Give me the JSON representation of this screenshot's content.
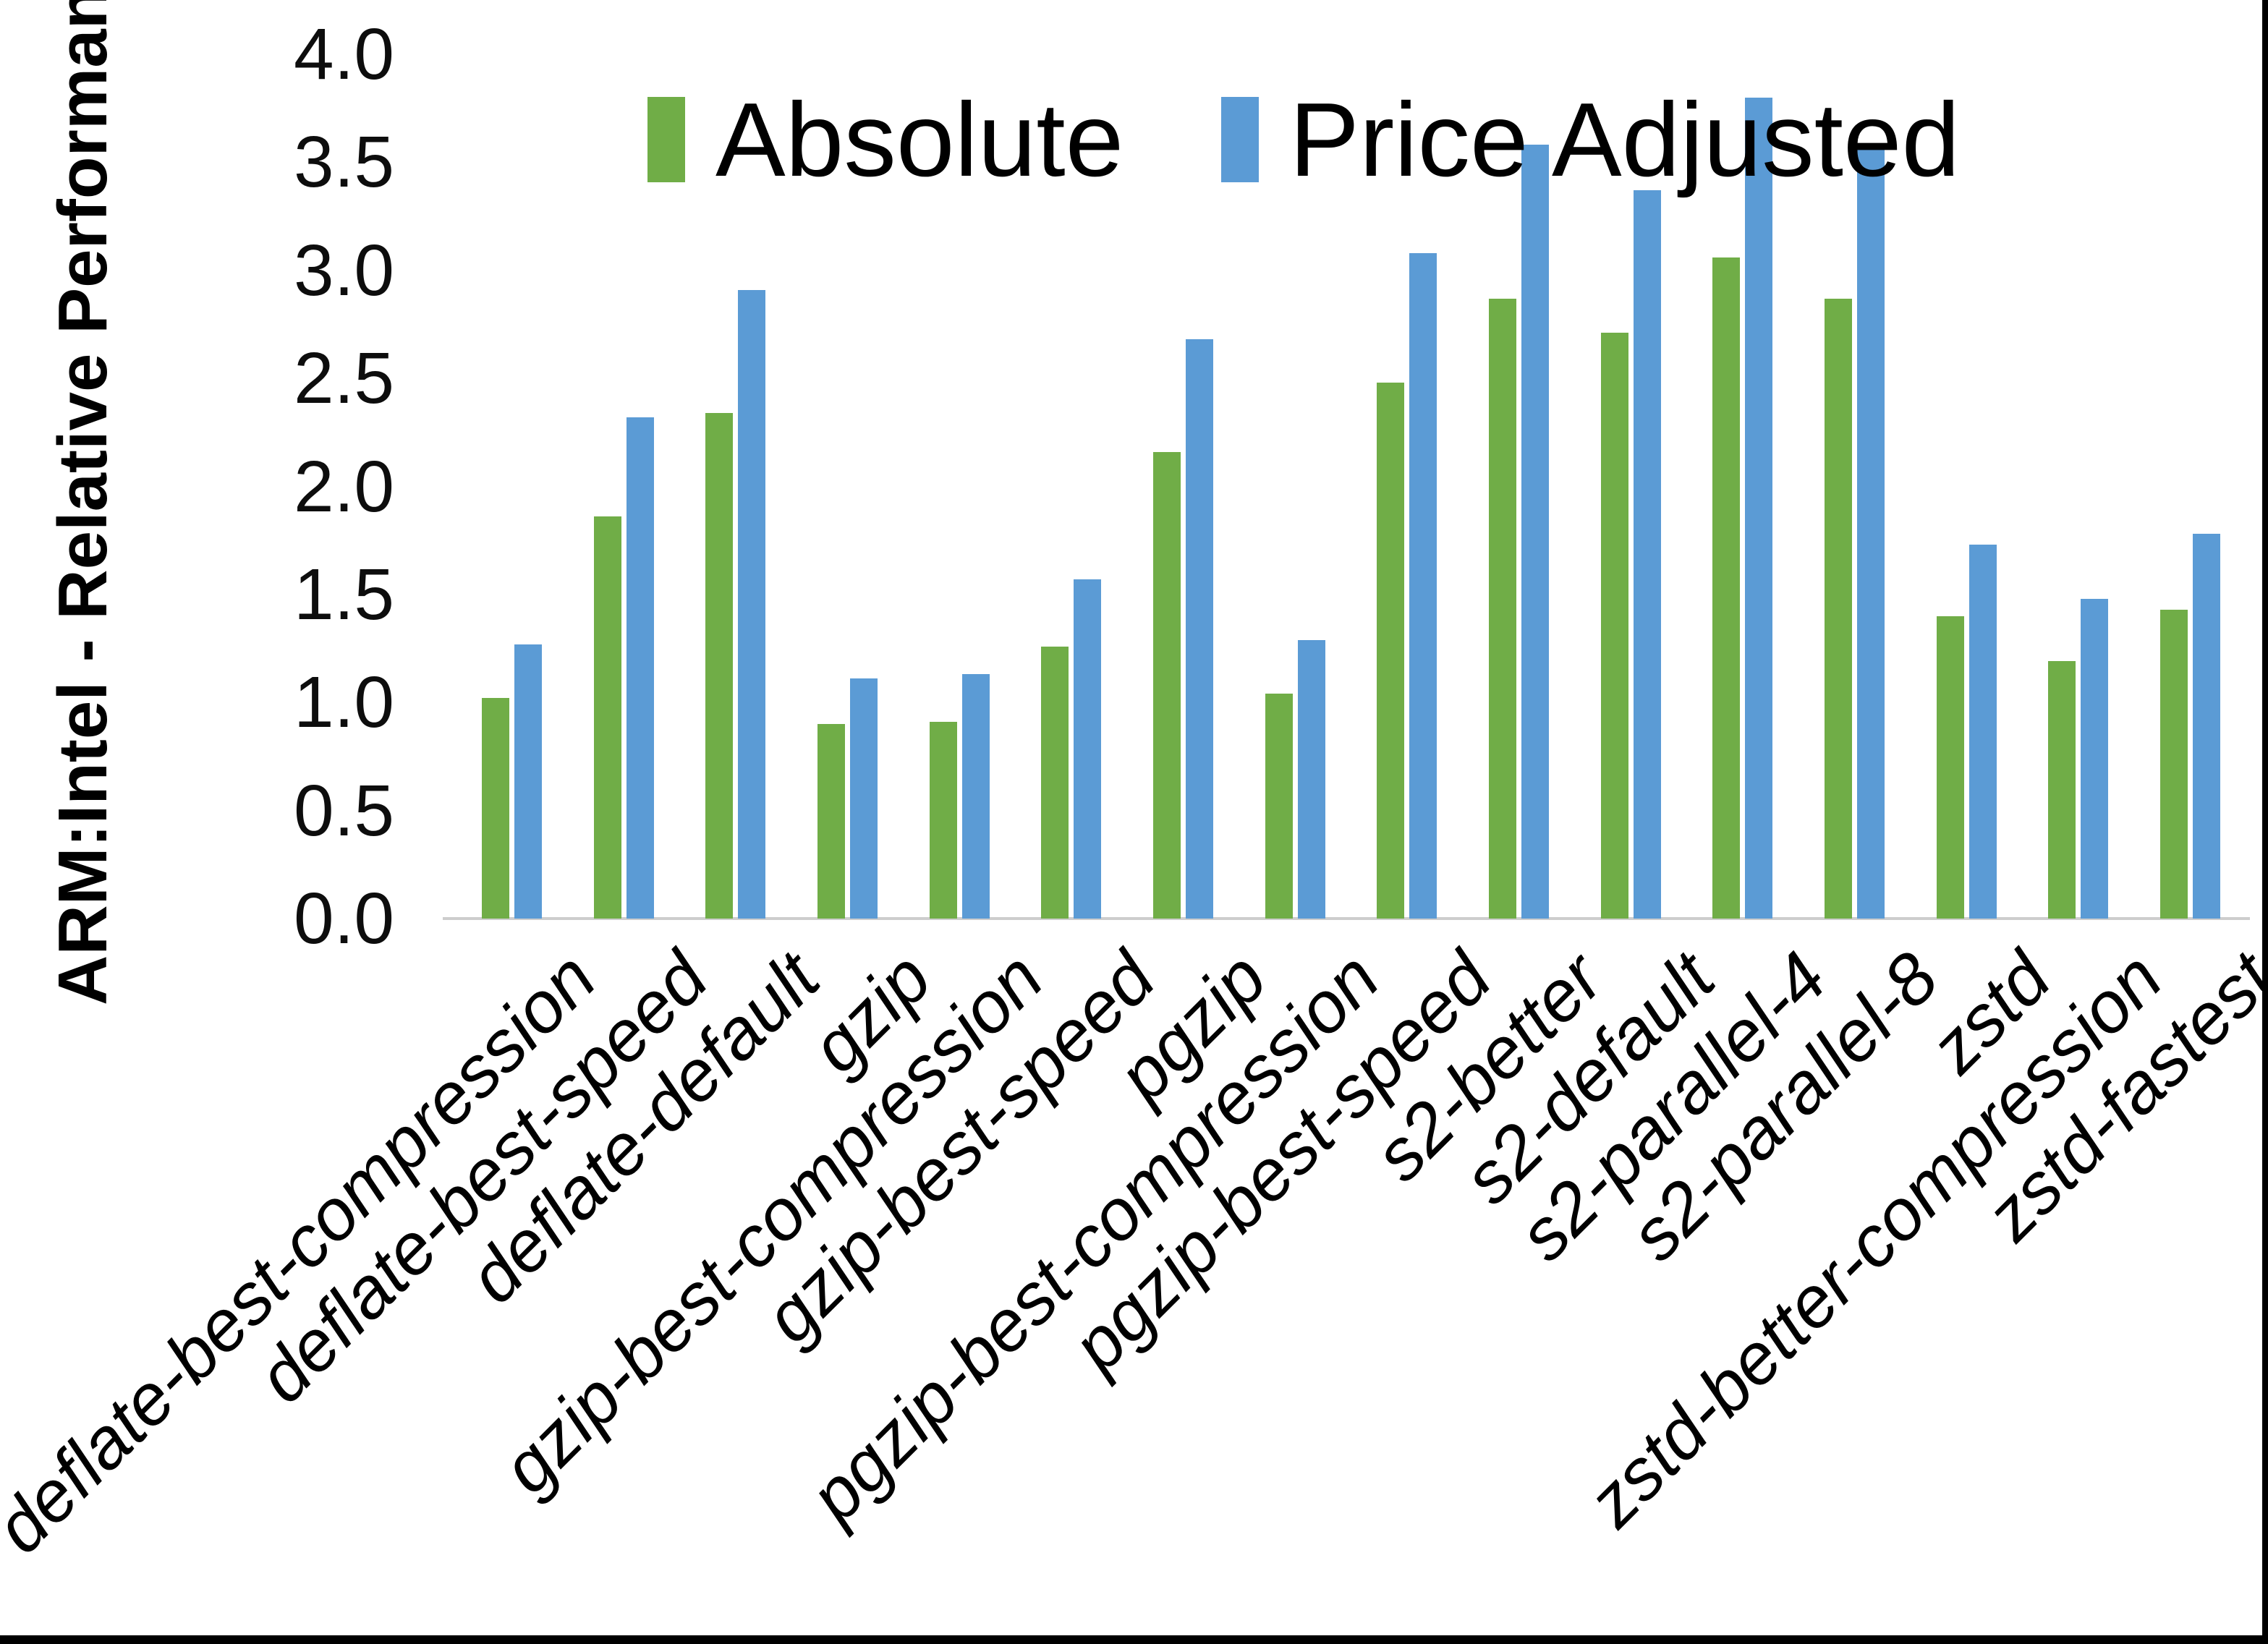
{
  "chart": {
    "ylabel": "ARM:Intel - Relative Performance",
    "y_ticks": [
      "0.0",
      "0.5",
      "1.0",
      "1.5",
      "2.0",
      "2.5",
      "3.0",
      "3.5",
      "4.0"
    ]
  },
  "chart_data": {
    "type": "bar",
    "title": "",
    "xlabel": "",
    "ylabel": "ARM:Intel - Relative Performance",
    "ylim": [
      0,
      4.0
    ],
    "ytick_step": 0.5,
    "grid": false,
    "legend_position": "top-center",
    "categories": [
      "deflate-best-compression",
      "deflate-best-speed",
      "deflate-default",
      "gzip",
      "gzip-best-compression",
      "gzip-best-speed",
      "pgzip",
      "pgzip-best-compression",
      "pgzip-best-speed",
      "s2-better",
      "s2-default",
      "s2-parallel-4",
      "s2-parallel-8",
      "zstd",
      "zstd-better-compression",
      "zstd-fastest"
    ],
    "series": [
      {
        "name": "Absolute",
        "color": "#70AD47",
        "values": [
          1.02,
          1.86,
          2.34,
          0.9,
          0.91,
          1.26,
          2.16,
          1.04,
          2.48,
          2.87,
          2.71,
          3.06,
          2.87,
          1.4,
          1.19,
          1.43
        ]
      },
      {
        "name": "Price Adjusted",
        "color": "#5B9BD5",
        "values": [
          1.27,
          2.32,
          2.91,
          1.11,
          1.13,
          1.57,
          2.68,
          1.29,
          3.08,
          3.58,
          3.37,
          3.8,
          3.58,
          1.73,
          1.48,
          1.78
        ]
      }
    ]
  }
}
